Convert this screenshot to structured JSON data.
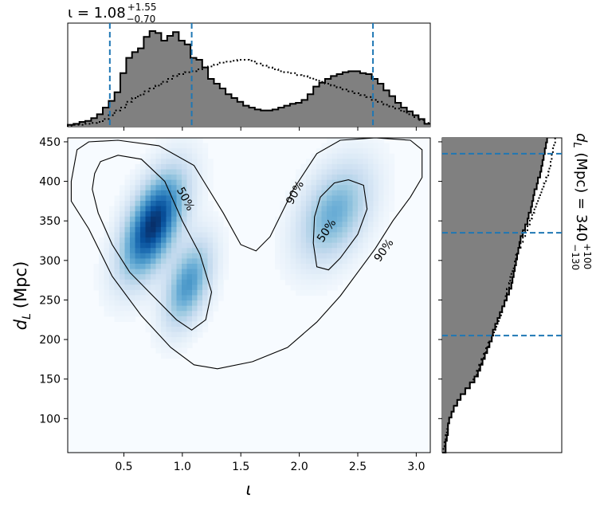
{
  "chart_data": [
    {
      "type": "heatmap",
      "role": "joint-posterior",
      "xlabel": "ι",
      "ylabel_main": "d",
      "ylabel_sub": "L",
      "ylabel_unit": "(Mpc)",
      "xlim": [
        0.02,
        3.12
      ],
      "ylim": [
        57,
        455
      ],
      "x_ticks": [
        0.5,
        1.0,
        1.5,
        2.0,
        2.5,
        3.0
      ],
      "x_tick_labels": [
        "0.5",
        "1.0",
        "1.5",
        "2.0",
        "2.5",
        "3.0"
      ],
      "y_ticks": [
        100,
        150,
        200,
        250,
        300,
        350,
        400,
        450
      ],
      "y_tick_labels": [
        "100",
        "150",
        "200",
        "250",
        "300",
        "350",
        "400",
        "450"
      ],
      "colormap": [
        "#f7fbff",
        "#deebf7",
        "#c6dbef",
        "#9ecae1",
        "#6baed6",
        "#4292c6",
        "#2171b5",
        "#08519c",
        "#08306b"
      ],
      "density_modes": [
        {
          "x": 0.75,
          "y": 345,
          "sx": 0.17,
          "sy": 42,
          "rho": 0.55,
          "w": 1.0
        },
        {
          "x": 1.05,
          "y": 270,
          "sx": 0.13,
          "sy": 35,
          "rho": 0.45,
          "w": 0.55
        },
        {
          "x": 2.3,
          "y": 360,
          "sx": 0.2,
          "sy": 40,
          "rho": 0.4,
          "w": 0.45
        }
      ],
      "contours": [
        {
          "label": "90%",
          "points": [
            [
              0.05,
              400
            ],
            [
              0.1,
              440
            ],
            [
              0.2,
              450
            ],
            [
              0.45,
              452
            ],
            [
              0.8,
              445
            ],
            [
              1.1,
              420
            ],
            [
              1.35,
              360
            ],
            [
              1.5,
              320
            ],
            [
              1.63,
              312
            ],
            [
              1.75,
              330
            ],
            [
              1.95,
              390
            ],
            [
              2.15,
              435
            ],
            [
              2.35,
              452
            ],
            [
              2.65,
              455
            ],
            [
              2.95,
              452
            ],
            [
              3.05,
              440
            ],
            [
              3.05,
              405
            ],
            [
              2.95,
              380
            ],
            [
              2.8,
              350
            ],
            [
              2.65,
              315
            ],
            [
              2.5,
              285
            ],
            [
              2.35,
              255
            ],
            [
              2.15,
              222
            ],
            [
              1.9,
              190
            ],
            [
              1.6,
              172
            ],
            [
              1.3,
              163
            ],
            [
              1.1,
              168
            ],
            [
              0.9,
              190
            ],
            [
              0.65,
              230
            ],
            [
              0.4,
              280
            ],
            [
              0.2,
              340
            ],
            [
              0.05,
              375
            ],
            [
              0.05,
              400
            ]
          ]
        },
        {
          "label": "50%",
          "points": [
            [
              0.25,
              410
            ],
            [
              0.3,
              425
            ],
            [
              0.45,
              433
            ],
            [
              0.65,
              428
            ],
            [
              0.85,
              400
            ],
            [
              1.0,
              350
            ],
            [
              1.15,
              308
            ],
            [
              1.25,
              260
            ],
            [
              1.2,
              225
            ],
            [
              1.08,
              212
            ],
            [
              0.95,
              225
            ],
            [
              0.75,
              255
            ],
            [
              0.55,
              285
            ],
            [
              0.4,
              320
            ],
            [
              0.28,
              360
            ],
            [
              0.23,
              390
            ],
            [
              0.25,
              410
            ]
          ]
        },
        {
          "label": "50%",
          "points": [
            [
              2.18,
              380
            ],
            [
              2.3,
              398
            ],
            [
              2.42,
              402
            ],
            [
              2.55,
              395
            ],
            [
              2.58,
              365
            ],
            [
              2.5,
              333
            ],
            [
              2.35,
              303
            ],
            [
              2.25,
              288
            ],
            [
              2.15,
              292
            ],
            [
              2.12,
              322
            ],
            [
              2.13,
              355
            ],
            [
              2.18,
              380
            ]
          ]
        }
      ],
      "contour_labels": [
        {
          "text": "50%",
          "x": 1.03,
          "y": 378,
          "angle": 62
        },
        {
          "text": "90%",
          "x": 1.96,
          "y": 386,
          "angle": -62
        },
        {
          "text": "50%",
          "x": 2.23,
          "y": 338,
          "angle": -57
        },
        {
          "text": "90%",
          "x": 2.72,
          "y": 313,
          "angle": -55
        }
      ]
    },
    {
      "type": "histogram",
      "role": "marginal-iota",
      "title_prefix": "ι = 1.08",
      "title_plus": "+1.55",
      "title_minus": "−0.70",
      "bin_edges_start": 0.02,
      "bin_width": 0.05,
      "counts_posterior": [
        2,
        3,
        5,
        6,
        9,
        13,
        20,
        27,
        36,
        56,
        72,
        78,
        82,
        94,
        100,
        98,
        90,
        95,
        99,
        90,
        86,
        72,
        70,
        62,
        50,
        45,
        40,
        34,
        30,
        26,
        22,
        20,
        18,
        17,
        17,
        18,
        20,
        22,
        24,
        25,
        28,
        34,
        42,
        46,
        50,
        53,
        55,
        57,
        58,
        58,
        56,
        55,
        50,
        45,
        38,
        32,
        25,
        20,
        16,
        12,
        8,
        3
      ],
      "counts_prior": [
        1,
        2,
        2,
        3,
        4,
        5,
        8,
        12,
        17,
        20,
        26,
        30,
        33,
        37,
        40,
        43,
        47,
        50,
        53,
        55,
        57,
        58,
        60,
        62,
        63,
        65,
        67,
        68,
        69,
        70,
        70,
        69,
        66,
        64,
        62,
        60,
        58,
        57,
        56,
        54,
        53,
        51,
        49,
        47,
        45,
        43,
        41,
        39,
        37,
        35,
        33,
        31,
        28,
        26,
        23,
        21,
        19,
        16,
        13,
        10,
        7,
        4
      ],
      "quantile_lines": [
        0.38,
        1.08,
        2.63
      ],
      "fill_color": "#808080",
      "quantile_color": "#1f77b4"
    },
    {
      "type": "histogram",
      "role": "marginal-distance",
      "label_prefix": "d",
      "label_sub": "L",
      "label_unit": " (Mpc) = 340",
      "label_plus": "+100",
      "label_minus": "−130",
      "bin_edges_start": 57,
      "bin_width": 7.4,
      "counts_posterior": [
        3,
        3,
        4,
        5,
        5,
        6,
        8,
        10,
        13,
        16,
        20,
        24,
        28,
        31,
        33,
        35,
        37,
        39,
        41,
        43,
        44,
        46,
        48,
        50,
        52,
        54,
        56,
        58,
        60,
        61,
        62,
        63,
        64,
        65,
        66,
        67,
        68,
        70,
        72,
        74,
        75,
        77,
        78,
        79,
        80,
        82,
        83,
        85,
        86,
        87,
        88,
        89,
        90,
        91
      ],
      "counts_prior": [
        1,
        2,
        3,
        4,
        5,
        6,
        8,
        10,
        13,
        16,
        20,
        24,
        27,
        30,
        32,
        34,
        36,
        38,
        40,
        43,
        45,
        47,
        49,
        51,
        52,
        54,
        55,
        56,
        58,
        59,
        60,
        62,
        63,
        64,
        66,
        68,
        70,
        72,
        74,
        76,
        78,
        80,
        82,
        84,
        86,
        88,
        90,
        92,
        93,
        94,
        95,
        96,
        97,
        98
      ],
      "quantile_lines": [
        205,
        335,
        435
      ],
      "fill_color": "#808080",
      "quantile_color": "#1f77b4"
    }
  ]
}
